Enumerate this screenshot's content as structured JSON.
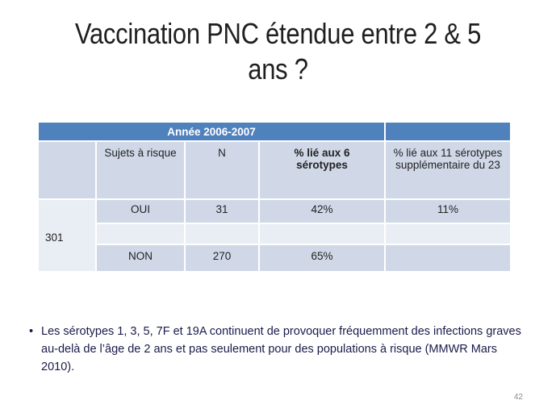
{
  "slide": {
    "title_line1": "Vaccination PNC étendue entre 2 & 5",
    "title_line2": "ans ?",
    "page_number": "42"
  },
  "table": {
    "header": "Année 2006-2007",
    "columns": [
      "Sujets à risque",
      "N",
      "% lié aux  6 sérotypes",
      "% lié aux 11 sérotypes supplémentaire du 23"
    ],
    "column_lines": {
      "col3_line1": "% lié aux  6",
      "col3_line2": "sérotypes",
      "col4_line1": "% lié aux 11 sérotypes",
      "col4_line2": "supplémentaire du 23"
    },
    "row_label": "301",
    "rows": [
      {
        "risk": "OUI",
        "n": "31",
        "pct6": "42%",
        "pct11": "11%"
      },
      {
        "risk": "",
        "n": "",
        "pct6": "",
        "pct11": ""
      },
      {
        "risk": "NON",
        "n": "270",
        "pct6": "65%",
        "pct11": ""
      }
    ]
  },
  "bullet": {
    "symbol": "•",
    "text": "Les sérotypes 1, 3, 5, 7F et 19A continuent de provoquer fréquemment des infections graves au-delà de l’âge de 2 ans et pas seulement pour des populations à risque (MMWR Mars 2010)."
  }
}
